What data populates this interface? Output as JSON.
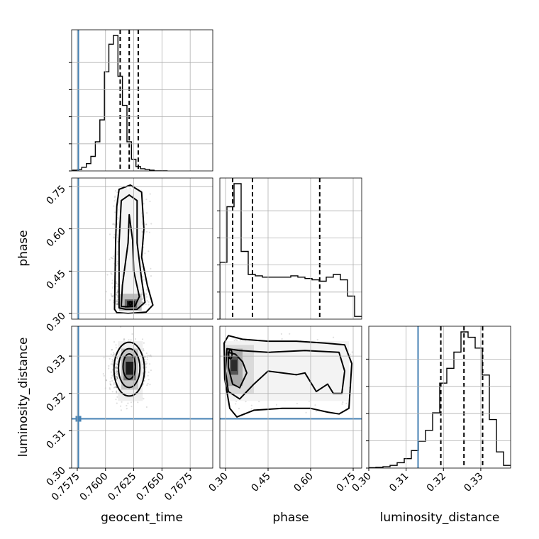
{
  "chart_data": {
    "type": "corner",
    "parameters": [
      "geocent_time",
      "phase",
      "luminosity_distance"
    ],
    "ranges": {
      "geocent_time": [
        0.757,
        0.7695
      ],
      "phase": [
        0.28,
        0.78
      ],
      "luminosity_distance": [
        0.3,
        0.338
      ]
    },
    "ticks": {
      "geocent_time": [
        "0.7575",
        "0.7600",
        "0.7625",
        "0.7650",
        "0.7675"
      ],
      "phase": [
        "0.30",
        "0.45",
        "0.60",
        "0.75"
      ],
      "luminosity_distance": [
        "0.30",
        "0.31",
        "0.32",
        "0.33"
      ]
    },
    "injection": {
      "geocent_time": 0.7576,
      "luminosity_distance": 0.3132,
      "color": "#4682b4"
    },
    "quantiles": {
      "geocent_time": [
        0.7613,
        0.7621,
        0.7629
      ],
      "phase": [
        0.325,
        0.395,
        0.632
      ],
      "luminosity_distance": [
        0.3193,
        0.3255,
        0.3305
      ]
    },
    "histograms": {
      "geocent_time": {
        "bins": [
          0.7571,
          0.7575,
          0.7579,
          0.7583,
          0.7587,
          0.7591,
          0.7595,
          0.7599,
          0.7603,
          0.7607,
          0.7611,
          0.7615,
          0.7619,
          0.7623,
          0.7627,
          0.7631,
          0.7635,
          0.7639,
          0.7643,
          0.7647,
          0.7651,
          0.7655
        ],
        "counts": [
          0.5,
          1,
          2.5,
          5,
          10,
          20,
          35,
          68,
          87,
          93,
          65,
          45,
          20,
          8,
          3,
          1.5,
          1,
          0.5,
          0,
          0,
          0
        ]
      },
      "phase": {
        "bins": [
          0.28,
          0.305,
          0.33,
          0.355,
          0.38,
          0.405,
          0.43,
          0.455,
          0.48,
          0.505,
          0.53,
          0.555,
          0.58,
          0.605,
          0.63,
          0.655,
          0.68,
          0.705,
          0.73,
          0.755,
          0.78
        ],
        "counts": [
          42,
          83,
          100,
          50,
          33,
          32,
          31,
          31,
          31,
          31,
          32,
          31,
          30,
          29,
          28,
          31,
          33,
          29,
          17,
          2
        ]
      },
      "luminosity_distance": {
        "bins": [
          0.3,
          0.3019,
          0.3038,
          0.3057,
          0.3076,
          0.3095,
          0.3114,
          0.3133,
          0.3152,
          0.3171,
          0.319,
          0.3209,
          0.3228,
          0.3247,
          0.3266,
          0.3285,
          0.3304,
          0.3323,
          0.3342,
          0.3361,
          0.338
        ],
        "counts": [
          0.3,
          0.5,
          1,
          2,
          4,
          7,
          13,
          20,
          28,
          41,
          63,
          74,
          86,
          101,
          97,
          89,
          69,
          36,
          12,
          2
        ]
      }
    },
    "density_peaks": {
      "phase_vs_geocent_time": {
        "x": 0.7623,
        "y": 0.335
      },
      "luminosity_distance_vs_geocent_time": {
        "x": 0.7622,
        "y": 0.3268
      },
      "luminosity_distance_vs_phase": {
        "x": 0.33,
        "y": 0.3282
      }
    }
  }
}
